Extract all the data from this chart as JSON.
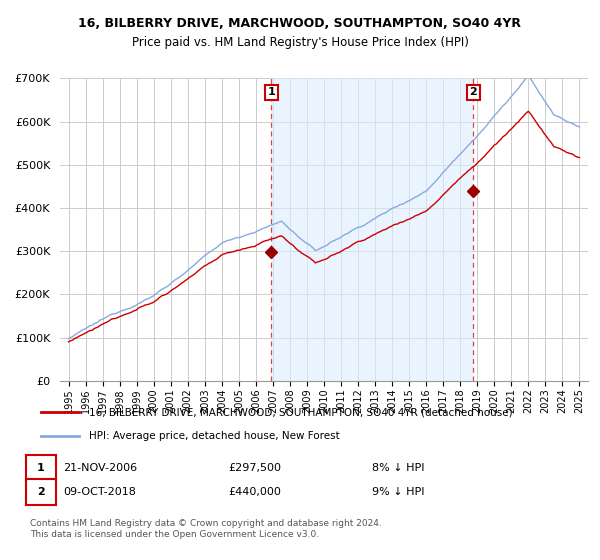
{
  "title": "16, BILBERRY DRIVE, MARCHWOOD, SOUTHAMPTON, SO40 4YR",
  "subtitle": "Price paid vs. HM Land Registry's House Price Index (HPI)",
  "hpi_label": "HPI: Average price, detached house, New Forest",
  "house_label": "16, BILBERRY DRIVE, MARCHWOOD, SOUTHAMPTON, SO40 4YR (detached house)",
  "house_color": "#cc0000",
  "hpi_color": "#88aadd",
  "hpi_fill_color": "#ddeeff",
  "marker_color": "#990000",
  "vline_color": "#dd4444",
  "annotation_box_color": "#cc0000",
  "background_color": "#ffffff",
  "grid_color": "#cccccc",
  "ylim": [
    0,
    700000
  ],
  "yticks": [
    0,
    100000,
    200000,
    300000,
    400000,
    500000,
    600000,
    700000
  ],
  "ytick_labels": [
    "£0",
    "£100K",
    "£200K",
    "£300K",
    "£400K",
    "£500K",
    "£600K",
    "£700K"
  ],
  "sale1_x": 2006.9,
  "sale1_y": 297500,
  "sale1_label": "1",
  "sale1_date": "21-NOV-2006",
  "sale1_price": "£297,500",
  "sale1_hpi": "8% ↓ HPI",
  "sale2_x": 2018.77,
  "sale2_y": 440000,
  "sale2_label": "2",
  "sale2_date": "09-OCT-2018",
  "sale2_price": "£440,000",
  "sale2_hpi": "9% ↓ HPI",
  "footer": "Contains HM Land Registry data © Crown copyright and database right 2024.\nThis data is licensed under the Open Government Licence v3.0.",
  "xmin": 1994.5,
  "xmax": 2025.5
}
